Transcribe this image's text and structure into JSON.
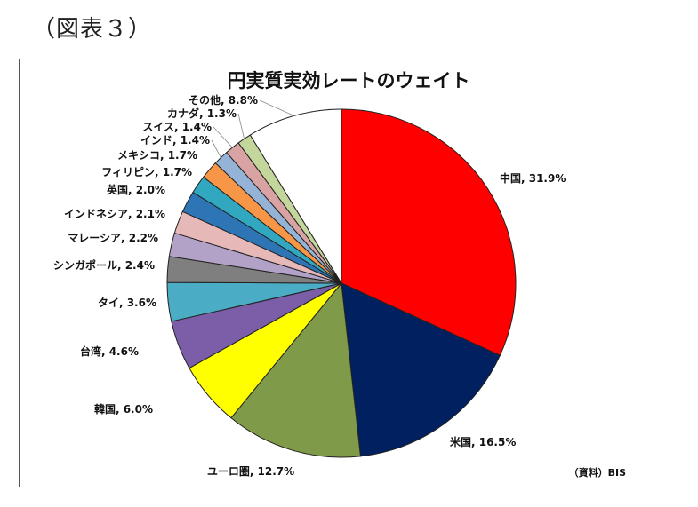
{
  "figure_label": "（図表３）",
  "source": "（資料）BIS",
  "chart_data": {
    "type": "pie",
    "title": "円実質実効レートのウェイト",
    "start": "12 o'clock, clockwise",
    "slices": [
      {
        "label": "中国",
        "value": 31.9,
        "display": "31.9%",
        "color": "#ff0000"
      },
      {
        "label": "米国",
        "value": 16.5,
        "display": "16.5%",
        "color": "#002060"
      },
      {
        "label": "ユーロ圏",
        "value": 12.7,
        "display": "12.7%",
        "color": "#7f9a48"
      },
      {
        "label": "韓国",
        "value": 6.0,
        "display": "6.0%",
        "color": "#ffff00"
      },
      {
        "label": "台湾",
        "value": 4.6,
        "display": "4.6%",
        "color": "#7b5ea7"
      },
      {
        "label": "タイ",
        "value": 3.6,
        "display": "3.6%",
        "color": "#4bacc6"
      },
      {
        "label": "シンガポール",
        "value": 2.4,
        "display": "2.4%",
        "color": "#7f7f7f"
      },
      {
        "label": "マレーシア",
        "value": 2.2,
        "display": "2.2%",
        "color": "#b3a2c7"
      },
      {
        "label": "インドネシア",
        "value": 2.1,
        "display": "2.1%",
        "color": "#e6b9b8"
      },
      {
        "label": "英国",
        "value": 2.0,
        "display": "2.0%",
        "color": "#2e75b6"
      },
      {
        "label": "フィリピン",
        "value": 1.7,
        "display": "1.7%",
        "color": "#31a8c0"
      },
      {
        "label": "メキシコ",
        "value": 1.7,
        "display": "1.7%",
        "color": "#f79646"
      },
      {
        "label": "インド",
        "value": 1.4,
        "display": "1.4%",
        "color": "#95b3d7"
      },
      {
        "label": "スイス",
        "value": 1.4,
        "display": "1.4%",
        "color": "#d9a3a3"
      },
      {
        "label": "カナダ",
        "value": 1.3,
        "display": "1.3%",
        "color": "#c3d69b"
      },
      {
        "label": "その他",
        "value": 8.8,
        "display": "8.8%",
        "color": "#ffffff"
      }
    ]
  }
}
